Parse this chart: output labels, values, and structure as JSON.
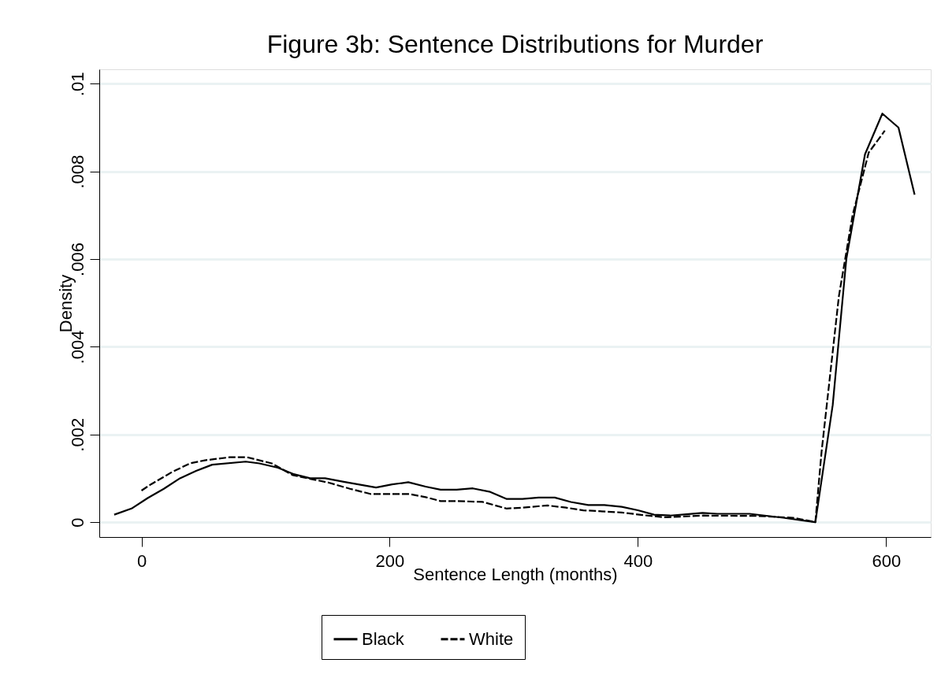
{
  "chart_data": {
    "type": "line",
    "title": "Figure 3b: Sentence Distributions for Murder",
    "xlabel": "Sentence Length (months)",
    "ylabel": "Density",
    "xlim": [
      -34,
      636
    ],
    "xticks": [
      0,
      200,
      400,
      600
    ],
    "ylim": [
      -0.00034,
      0.01033
    ],
    "yticks": [
      {
        "value": 0,
        "label": "0"
      },
      {
        "value": 0.002,
        "label": ".002"
      },
      {
        "value": 0.004,
        "label": ".004"
      },
      {
        "value": 0.006,
        "label": ".006"
      },
      {
        "value": 0.008,
        "label": ".008"
      },
      {
        "value": 0.01,
        "label": ".01"
      }
    ],
    "grid": "y",
    "legend": "bottom",
    "series": [
      {
        "name": "Black",
        "color": "#000000",
        "line_style": "solid",
        "x": [
          -22,
          -8,
          5,
          18,
          31,
          44,
          57,
          84,
          95,
          110,
          122,
          136,
          148,
          163,
          189,
          202,
          215,
          229,
          241,
          254,
          267,
          281,
          294,
          307,
          320,
          333,
          346,
          360,
          373,
          387,
          400,
          413,
          426,
          439,
          452,
          464,
          490,
          517,
          543,
          557,
          568,
          583,
          597,
          610,
          623
        ],
        "values": [
          0.00017,
          0.00031,
          0.00055,
          0.00076,
          0.001,
          0.00117,
          0.00131,
          0.00138,
          0.00134,
          0.00124,
          0.0011,
          0.001,
          0.001,
          0.00092,
          0.00079,
          0.00086,
          0.00091,
          0.00081,
          0.00074,
          0.00074,
          0.00077,
          0.00069,
          0.00053,
          0.00053,
          0.00056,
          0.00056,
          0.00046,
          0.00039,
          0.00039,
          0.00035,
          0.00027,
          0.00017,
          0.00015,
          0.00018,
          0.00021,
          0.00019,
          0.00019,
          0.0001,
          0,
          0.00267,
          0.00601,
          0.00839,
          0.00932,
          0.009,
          0.00747
        ]
      },
      {
        "name": "White",
        "color": "#000000",
        "line_style": "dashed",
        "x": [
          0,
          7.5,
          24.5,
          39,
          51,
          71,
          85,
          105,
          122,
          139,
          151,
          168,
          185,
          216,
          229,
          241,
          255,
          275,
          294,
          307,
          327,
          342,
          356,
          387,
          404,
          422,
          453,
          497,
          525,
          543,
          548,
          562,
          573,
          586,
          599
        ],
        "values": [
          0.00072,
          0.00086,
          0.00114,
          0.00134,
          0.00141,
          0.00148,
          0.00148,
          0.00134,
          0.00107,
          0.00097,
          0.0009,
          0.00076,
          0.00064,
          0.00064,
          0.00057,
          0.00048,
          0.00048,
          0.00046,
          0.00031,
          0.00033,
          0.00038,
          0.00033,
          0.00027,
          0.00022,
          0.00016,
          0.00011,
          0.00015,
          0.00014,
          0.0001,
          0,
          0.0016,
          0.00516,
          0.007,
          0.00843,
          0.00893
        ]
      }
    ]
  }
}
